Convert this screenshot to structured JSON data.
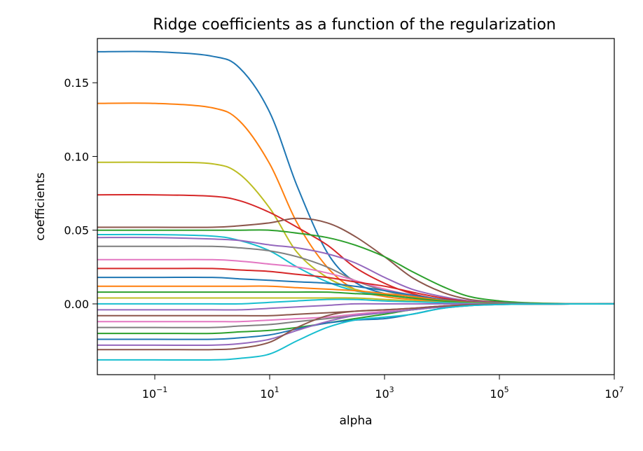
{
  "chart_data": {
    "type": "line",
    "title": "Ridge coefficients as a function of the regularization",
    "xlabel": "alpha",
    "ylabel": "coefficients",
    "xscale": "log",
    "xlim": [
      0.01,
      10000000
    ],
    "ylim": [
      -0.048,
      0.18
    ],
    "x": [
      0.01,
      0.1,
      1,
      3,
      10,
      30,
      100,
      300,
      1000,
      3000,
      10000,
      30000,
      100000,
      300000,
      1000000,
      3000000,
      10000000
    ],
    "x_ticks": [
      {
        "value": 0.1,
        "base": "10",
        "exp": "−1"
      },
      {
        "value": 10,
        "base": "10",
        "exp": "1"
      },
      {
        "value": 1000,
        "base": "10",
        "exp": "3"
      },
      {
        "value": 100000,
        "base": "10",
        "exp": "5"
      },
      {
        "value": 10000000,
        "base": "10",
        "exp": "7"
      }
    ],
    "y_ticks": [
      {
        "value": -0.0,
        "label": "0.00"
      },
      {
        "value": 0.05,
        "label": "0.05"
      },
      {
        "value": 0.1,
        "label": "0.10"
      },
      {
        "value": 0.15,
        "label": "0.15"
      }
    ],
    "grid": false,
    "legend": "none",
    "series": [
      {
        "color": "#1f77b4",
        "values": [
          0.171,
          0.171,
          0.168,
          0.16,
          0.13,
          0.08,
          0.035,
          0.015,
          0.007,
          0.004,
          0.002,
          0.001,
          0.0005,
          0.0002,
          0.0001,
          5e-05,
          0.0
        ]
      },
      {
        "color": "#ff7f0e",
        "values": [
          0.136,
          0.136,
          0.133,
          0.124,
          0.095,
          0.055,
          0.025,
          0.01,
          0.005,
          0.003,
          0.0015,
          0.0008,
          0.0004,
          0.0002,
          0.0001,
          5e-05,
          0.0
        ]
      },
      {
        "color": "#bcbd22",
        "values": [
          0.096,
          0.096,
          0.095,
          0.088,
          0.065,
          0.035,
          0.018,
          0.01,
          0.006,
          0.004,
          0.002,
          0.001,
          0.0005,
          0.0002,
          0.0001,
          5e-05,
          0.0
        ]
      },
      {
        "color": "#d62728",
        "values": [
          0.074,
          0.074,
          0.073,
          0.07,
          0.062,
          0.052,
          0.04,
          0.025,
          0.014,
          0.007,
          0.003,
          0.0015,
          0.0007,
          0.0003,
          0.0001,
          5e-05,
          0.0
        ]
      },
      {
        "color": "#8c564b",
        "values": [
          0.052,
          0.052,
          0.052,
          0.053,
          0.055,
          0.058,
          0.055,
          0.046,
          0.032,
          0.018,
          0.008,
          0.003,
          0.0012,
          0.0005,
          0.0002,
          0.0001,
          0.0
        ]
      },
      {
        "color": "#2ca02c",
        "values": [
          0.05,
          0.05,
          0.05,
          0.05,
          0.05,
          0.048,
          0.045,
          0.04,
          0.032,
          0.022,
          0.012,
          0.005,
          0.002,
          0.0008,
          0.0003,
          0.0001,
          0.0
        ]
      },
      {
        "color": "#17becf",
        "values": [
          0.047,
          0.047,
          0.046,
          0.043,
          0.036,
          0.025,
          0.015,
          0.009,
          0.006,
          0.004,
          0.002,
          0.001,
          0.0005,
          0.0002,
          0.0001,
          5e-05,
          0.0
        ]
      },
      {
        "color": "#9467bd",
        "values": [
          0.045,
          0.045,
          0.044,
          0.043,
          0.04,
          0.038,
          0.034,
          0.028,
          0.018,
          0.01,
          0.005,
          0.002,
          0.0008,
          0.0003,
          0.0001,
          5e-05,
          0.0
        ]
      },
      {
        "color": "#7f7f7f",
        "values": [
          0.039,
          0.039,
          0.039,
          0.038,
          0.036,
          0.032,
          0.025,
          0.016,
          0.009,
          0.005,
          0.002,
          0.001,
          0.0005,
          0.0002,
          0.0001,
          5e-05,
          0.0
        ]
      },
      {
        "color": "#e377c2",
        "values": [
          0.03,
          0.03,
          0.03,
          0.029,
          0.027,
          0.025,
          0.021,
          0.016,
          0.01,
          0.006,
          0.003,
          0.0012,
          0.0005,
          0.0002,
          0.0001,
          5e-05,
          0.0
        ]
      },
      {
        "color": "#d62728",
        "values": [
          0.024,
          0.024,
          0.024,
          0.023,
          0.022,
          0.02,
          0.018,
          0.015,
          0.012,
          0.008,
          0.004,
          0.0015,
          0.0006,
          0.0002,
          0.0001,
          5e-05,
          0.0
        ]
      },
      {
        "color": "#1f77b4",
        "values": [
          0.018,
          0.018,
          0.018,
          0.017,
          0.016,
          0.015,
          0.014,
          0.012,
          0.009,
          0.006,
          0.003,
          0.0012,
          0.0005,
          0.0002,
          0.0001,
          5e-05,
          0.0
        ]
      },
      {
        "color": "#ff7f0e",
        "values": [
          0.012,
          0.012,
          0.012,
          0.012,
          0.012,
          0.011,
          0.01,
          0.009,
          0.007,
          0.005,
          0.0025,
          0.001,
          0.0004,
          0.0002,
          0.0001,
          5e-05,
          0.0
        ]
      },
      {
        "color": "#2ca02c",
        "values": [
          0.008,
          0.008,
          0.008,
          0.008,
          0.008,
          0.008,
          0.008,
          0.007,
          0.006,
          0.004,
          0.002,
          0.0008,
          0.0003,
          0.0001,
          5e-05,
          2e-05,
          0.0
        ]
      },
      {
        "color": "#bcbd22",
        "values": [
          0.004,
          0.004,
          0.004,
          0.004,
          0.004,
          0.004,
          0.004,
          0.004,
          0.003,
          0.002,
          0.001,
          0.0005,
          0.0002,
          0.0001,
          5e-05,
          2e-05,
          0.0
        ]
      },
      {
        "color": "#17becf",
        "values": [
          0.0,
          0.0,
          0.0,
          0.0,
          0.001,
          0.002,
          0.003,
          0.003,
          0.002,
          0.0015,
          0.0008,
          0.0003,
          0.0001,
          5e-05,
          2e-05,
          1e-05,
          0.0
        ]
      },
      {
        "color": "#9467bd",
        "values": [
          -0.004,
          -0.004,
          -0.004,
          -0.004,
          -0.003,
          -0.002,
          -0.001,
          0.0,
          0.0,
          0.0,
          0.0,
          0.0,
          0.0,
          0.0,
          0.0,
          0.0,
          0.0
        ]
      },
      {
        "color": "#8c564b",
        "values": [
          -0.008,
          -0.008,
          -0.008,
          -0.008,
          -0.008,
          -0.007,
          -0.006,
          -0.005,
          -0.004,
          -0.003,
          -0.0015,
          -0.0006,
          -0.0002,
          -0.0001,
          -5e-05,
          -2e-05,
          0.0
        ]
      },
      {
        "color": "#e377c2",
        "values": [
          -0.012,
          -0.012,
          -0.012,
          -0.012,
          -0.011,
          -0.01,
          -0.009,
          -0.007,
          -0.005,
          -0.003,
          -0.0015,
          -0.0006,
          -0.0002,
          -0.0001,
          -5e-05,
          -2e-05,
          0.0
        ]
      },
      {
        "color": "#7f7f7f",
        "values": [
          -0.016,
          -0.016,
          -0.016,
          -0.015,
          -0.014,
          -0.012,
          -0.01,
          -0.008,
          -0.006,
          -0.004,
          -0.002,
          -0.0008,
          -0.0003,
          -0.0001,
          -5e-05,
          -2e-05,
          0.0
        ]
      },
      {
        "color": "#2ca02c",
        "values": [
          -0.02,
          -0.02,
          -0.02,
          -0.019,
          -0.018,
          -0.016,
          -0.013,
          -0.01,
          -0.007,
          -0.004,
          -0.002,
          -0.0008,
          -0.0003,
          -0.0001,
          -5e-05,
          -2e-05,
          0.0
        ]
      },
      {
        "color": "#1f77b4",
        "values": [
          -0.024,
          -0.024,
          -0.024,
          -0.023,
          -0.021,
          -0.017,
          -0.013,
          -0.011,
          -0.01,
          -0.007,
          -0.003,
          -0.0012,
          -0.0004,
          -0.0001,
          -5e-05,
          -2e-05,
          0.0
        ]
      },
      {
        "color": "#9467bd",
        "values": [
          -0.028,
          -0.028,
          -0.028,
          -0.027,
          -0.024,
          -0.018,
          -0.012,
          -0.008,
          -0.006,
          -0.004,
          -0.002,
          -0.0008,
          -0.0003,
          -0.0001,
          -5e-05,
          -2e-05,
          0.0
        ]
      },
      {
        "color": "#8c564b",
        "values": [
          -0.031,
          -0.031,
          -0.031,
          -0.03,
          -0.026,
          -0.016,
          -0.008,
          -0.005,
          -0.004,
          -0.003,
          -0.0015,
          -0.0006,
          -0.0002,
          -0.0001,
          -5e-05,
          -2e-05,
          0.0
        ]
      },
      {
        "color": "#17becf",
        "values": [
          -0.038,
          -0.038,
          -0.038,
          -0.037,
          -0.034,
          -0.025,
          -0.016,
          -0.011,
          -0.009,
          -0.007,
          -0.003,
          -0.0012,
          -0.0004,
          -0.0001,
          -5e-05,
          -2e-05,
          0.0
        ]
      }
    ]
  }
}
